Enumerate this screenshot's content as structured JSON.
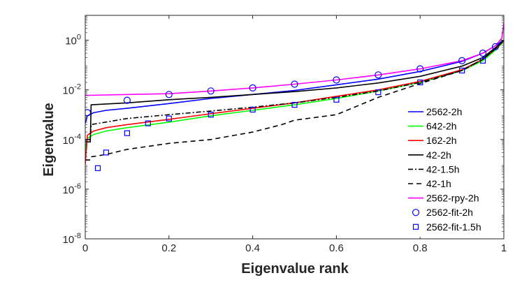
{
  "chart_data": {
    "type": "line",
    "title": "",
    "xlabel": "Eigenvalue rank",
    "ylabel": "Eigenvalue",
    "xlim": [
      0,
      1
    ],
    "ylim": [
      1e-08,
      10
    ],
    "yscale": "log",
    "grid": false,
    "legend_position": "bottom-right",
    "x_ticks": [
      {
        "value": 0,
        "label": "0"
      },
      {
        "value": 0.2,
        "label": "0.2"
      },
      {
        "value": 0.4,
        "label": "0.4"
      },
      {
        "value": 0.6,
        "label": "0.6"
      },
      {
        "value": 0.8,
        "label": "0.8"
      },
      {
        "value": 1,
        "label": "1"
      }
    ],
    "y_ticks": [
      {
        "value": 1e-08,
        "base": "10",
        "exp": "-8"
      },
      {
        "value": 1e-06,
        "base": "10",
        "exp": "-6"
      },
      {
        "value": 0.0001,
        "base": "10",
        "exp": "-4"
      },
      {
        "value": 0.01,
        "base": "10",
        "exp": "-2"
      },
      {
        "value": 1,
        "base": "10",
        "exp": "0"
      }
    ],
    "series": [
      {
        "name": "2562-2h",
        "color": "#0000ff",
        "dash": "solid",
        "marker": "none",
        "points": [
          [
            0,
            0.00045
          ],
          [
            0.005,
            0.0009
          ],
          [
            0.02,
            0.0012
          ],
          [
            0.05,
            0.0015
          ],
          [
            0.1,
            0.0018
          ],
          [
            0.2,
            0.0028
          ],
          [
            0.3,
            0.0045
          ],
          [
            0.4,
            0.0065
          ],
          [
            0.5,
            0.0095
          ],
          [
            0.6,
            0.016
          ],
          [
            0.7,
            0.027
          ],
          [
            0.8,
            0.055
          ],
          [
            0.9,
            0.14
          ],
          [
            0.95,
            0.3
          ],
          [
            0.98,
            0.6
          ],
          [
            0.995,
            0.9
          ],
          [
            1,
            1.0
          ]
        ]
      },
      {
        "name": "642-2h",
        "color": "#00ff00",
        "dash": "solid",
        "marker": "none",
        "points": [
          [
            0,
            4e-05
          ],
          [
            0.005,
            0.00011
          ],
          [
            0.02,
            0.00016
          ],
          [
            0.05,
            0.00022
          ],
          [
            0.1,
            0.0003
          ],
          [
            0.2,
            0.0005
          ],
          [
            0.3,
            0.0009
          ],
          [
            0.4,
            0.0015
          ],
          [
            0.5,
            0.0025
          ],
          [
            0.6,
            0.0045
          ],
          [
            0.7,
            0.009
          ],
          [
            0.8,
            0.02
          ],
          [
            0.9,
            0.06
          ],
          [
            0.95,
            0.15
          ],
          [
            0.98,
            0.4
          ],
          [
            1,
            0.9
          ]
        ]
      },
      {
        "name": "162-2h",
        "color": "#ff0000",
        "dash": "solid",
        "marker": "none",
        "points": [
          [
            0,
            1e-05
          ],
          [
            0.005,
            0.00015
          ],
          [
            0.02,
            0.00022
          ],
          [
            0.05,
            0.0003
          ],
          [
            0.1,
            0.0004
          ],
          [
            0.2,
            0.00065
          ],
          [
            0.3,
            0.0011
          ],
          [
            0.4,
            0.0018
          ],
          [
            0.5,
            0.003
          ],
          [
            0.6,
            0.0055
          ],
          [
            0.7,
            0.01
          ],
          [
            0.8,
            0.022
          ],
          [
            0.9,
            0.065
          ],
          [
            0.95,
            0.17
          ],
          [
            0.98,
            0.45
          ],
          [
            1,
            0.95
          ]
        ]
      },
      {
        "name": "42-2h",
        "color": "#000000",
        "dash": "solid",
        "marker": "none",
        "points": [
          [
            0,
            8e-05
          ],
          [
            0.012,
            8e-05
          ],
          [
            0.014,
            0.0025
          ],
          [
            0.1,
            0.003
          ],
          [
            0.2,
            0.004
          ],
          [
            0.3,
            0.005
          ],
          [
            0.4,
            0.0065
          ],
          [
            0.5,
            0.0085
          ],
          [
            0.6,
            0.012
          ],
          [
            0.7,
            0.019
          ],
          [
            0.8,
            0.035
          ],
          [
            0.9,
            0.09
          ],
          [
            0.95,
            0.2
          ],
          [
            0.98,
            0.5
          ],
          [
            1,
            1.0
          ]
        ]
      },
      {
        "name": "42-1.5h",
        "color": "#000000",
        "dash": "dashdot",
        "marker": "none",
        "points": [
          [
            0,
            0.0001
          ],
          [
            0.012,
            0.0001
          ],
          [
            0.014,
            0.0004
          ],
          [
            0.1,
            0.0007
          ],
          [
            0.2,
            0.001
          ],
          [
            0.3,
            0.0014
          ],
          [
            0.4,
            0.002
          ],
          [
            0.5,
            0.003
          ],
          [
            0.6,
            0.005
          ],
          [
            0.7,
            0.009
          ],
          [
            0.8,
            0.02
          ],
          [
            0.9,
            0.06
          ],
          [
            0.95,
            0.17
          ],
          [
            0.98,
            0.45
          ],
          [
            1,
            1.0
          ]
        ]
      },
      {
        "name": "42-1h",
        "color": "#000000",
        "dash": "dashed",
        "marker": "none",
        "points": [
          [
            0,
            1.5e-05
          ],
          [
            0.012,
            1.5e-05
          ],
          [
            0.014,
            2e-05
          ],
          [
            0.05,
            2.5e-05
          ],
          [
            0.1,
            4e-05
          ],
          [
            0.2,
            7e-05
          ],
          [
            0.3,
            0.0001
          ],
          [
            0.4,
            0.0002
          ],
          [
            0.47,
            0.0004
          ],
          [
            0.5,
            0.0006
          ],
          [
            0.6,
            0.001
          ],
          [
            0.7,
            0.005
          ],
          [
            0.8,
            0.018
          ],
          [
            0.9,
            0.06
          ],
          [
            0.95,
            0.17
          ],
          [
            0.98,
            0.45
          ],
          [
            1,
            1.0
          ]
        ]
      },
      {
        "name": "2562-rpy-2h",
        "color": "#ff00ff",
        "dash": "solid",
        "marker": "none",
        "points": [
          [
            0,
            0.006
          ],
          [
            0.1,
            0.0065
          ],
          [
            0.2,
            0.007
          ],
          [
            0.3,
            0.009
          ],
          [
            0.4,
            0.012
          ],
          [
            0.5,
            0.017
          ],
          [
            0.6,
            0.025
          ],
          [
            0.7,
            0.04
          ],
          [
            0.8,
            0.07
          ],
          [
            0.9,
            0.15
          ],
          [
            0.95,
            0.3
          ],
          [
            0.98,
            0.6
          ],
          [
            0.995,
            1.2
          ],
          [
            1,
            5.0
          ]
        ]
      },
      {
        "name": "2562-fit-2h",
        "color": "#0000ff",
        "dash": "none",
        "marker": "circle",
        "points": [
          [
            0.005,
            0.0012
          ],
          [
            0.1,
            0.0038
          ],
          [
            0.2,
            0.0065
          ],
          [
            0.3,
            0.009
          ],
          [
            0.4,
            0.012
          ],
          [
            0.5,
            0.017
          ],
          [
            0.6,
            0.025
          ],
          [
            0.7,
            0.04
          ],
          [
            0.8,
            0.07
          ],
          [
            0.9,
            0.15
          ],
          [
            0.95,
            0.3
          ],
          [
            0.98,
            0.55
          ]
        ]
      },
      {
        "name": "2562-fit-1.5h",
        "color": "#0000ff",
        "dash": "none",
        "marker": "square",
        "points": [
          [
            0.03,
            7e-06
          ],
          [
            0.05,
            3e-05
          ],
          [
            0.1,
            0.00018
          ],
          [
            0.15,
            0.00045
          ],
          [
            0.2,
            0.0007
          ],
          [
            0.3,
            0.001
          ],
          [
            0.4,
            0.0016
          ],
          [
            0.5,
            0.0025
          ],
          [
            0.6,
            0.004
          ],
          [
            0.7,
            0.008
          ],
          [
            0.8,
            0.02
          ],
          [
            0.9,
            0.06
          ],
          [
            0.95,
            0.15
          ]
        ]
      }
    ]
  }
}
